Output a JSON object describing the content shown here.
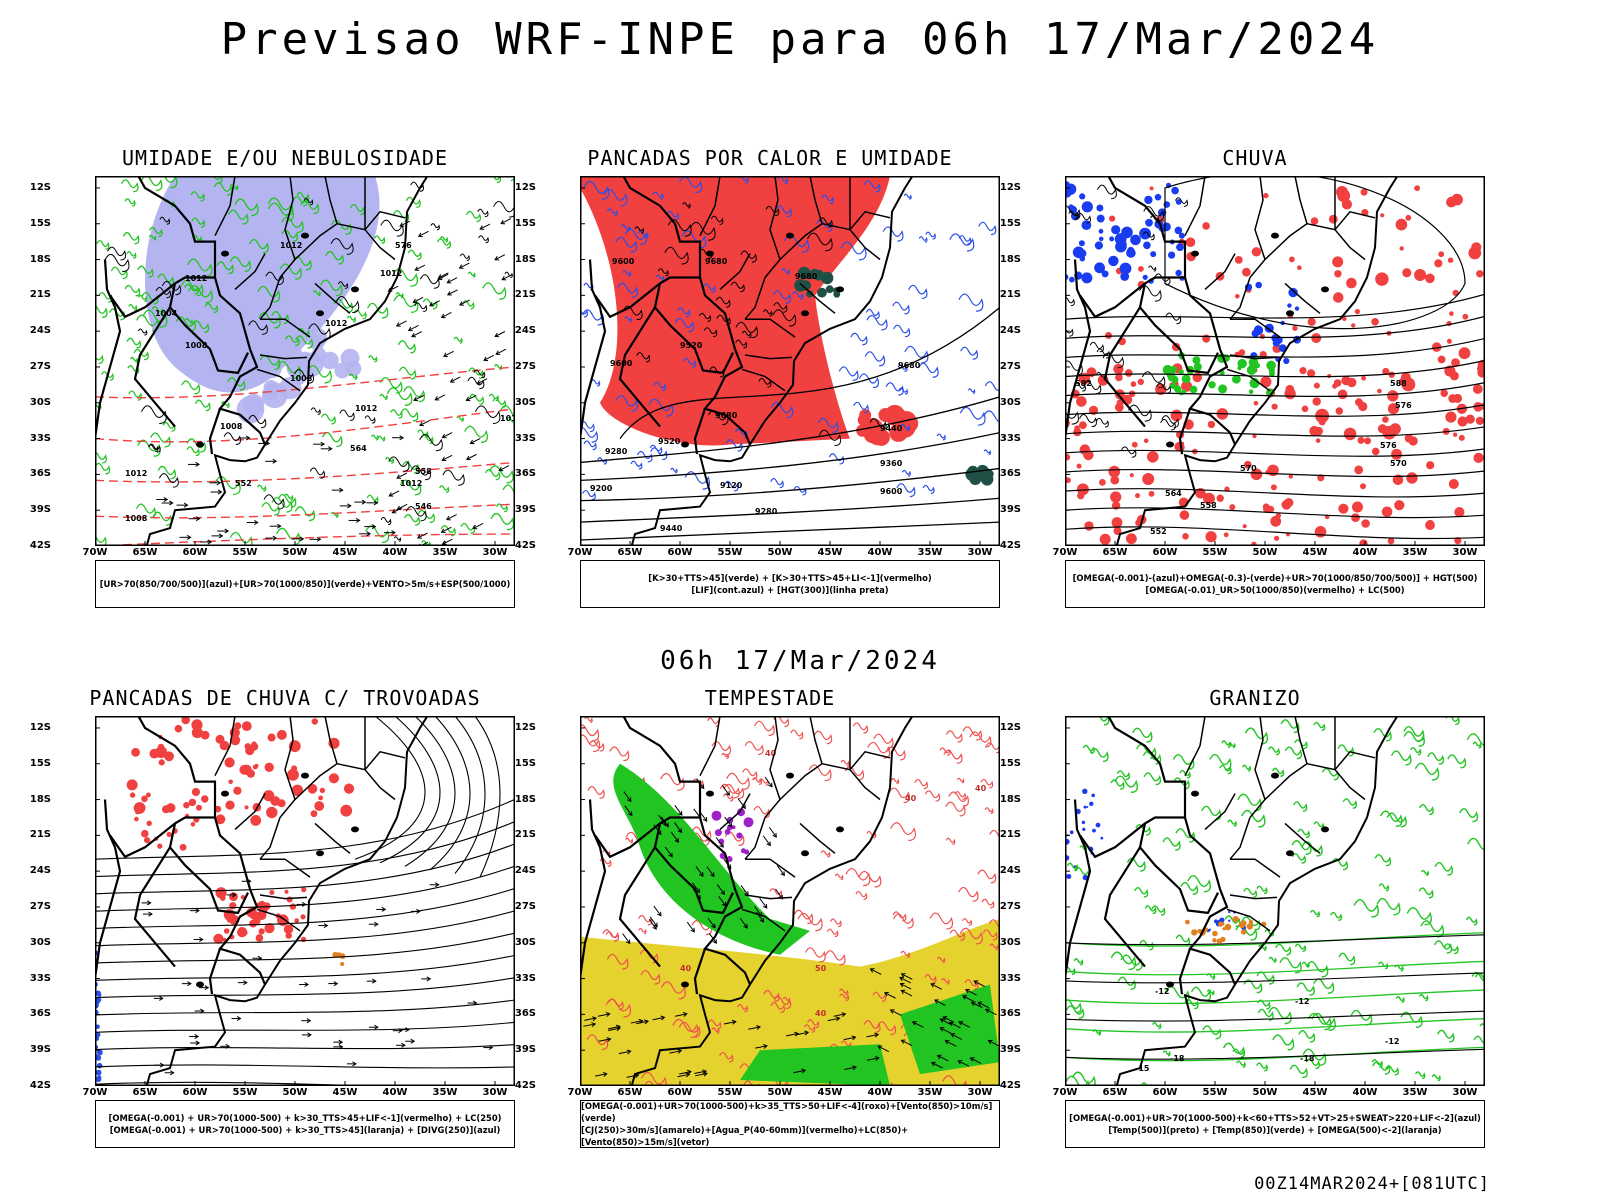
{
  "title": "Previsao WRF-INPE  para 06h 17/Mar/2024",
  "mid_time": "06h 17/Mar/2024",
  "footer": "00Z14MAR2024+[081UTC]",
  "axes": {
    "lat_labels": [
      "12S",
      "15S",
      "18S",
      "21S",
      "24S",
      "27S",
      "30S",
      "33S",
      "36S",
      "39S",
      "42S"
    ],
    "lon_labels": [
      "70W",
      "65W",
      "60W",
      "55W",
      "50W",
      "45W",
      "40W",
      "35W",
      "30W"
    ]
  },
  "panels": [
    {
      "id": "umidade",
      "title": "UMIDADE E/OU NEBULOSIDADE",
      "legend": [
        "[UR>70(850/700/500)](azul)+[UR>70(1000/850)](verde)+VENTO>5m/s+ESP(500/1000)"
      ],
      "contour_labels": [
        "1012",
        "1012",
        "1008",
        "1012",
        "1012",
        "1004",
        "1008",
        "1008",
        "1012",
        "1016",
        "1008",
        "1012",
        "1012",
        "1008",
        "576",
        "570",
        "564",
        "558",
        "552",
        "546"
      ]
    },
    {
      "id": "pancadas_calor",
      "title": "PANCADAS POR CALOR E UMIDADE",
      "legend": [
        "[K>30+TTS>45](verde) + [K>30+TTS>45+LI<-1](vermelho)",
        "[LIF](cont.azul) + [HGT(300)](linha preta)"
      ],
      "contour_labels": [
        "9680",
        "9600",
        "9680",
        "9680",
        "9680",
        "9520",
        "9600",
        "9440",
        "9520",
        "9280",
        "9360",
        "9200",
        "9120",
        "9280",
        "9440",
        "9600",
        "9680"
      ]
    },
    {
      "id": "chuva",
      "title": "CHUVA",
      "legend": [
        "[OMEGA(-0.001)-(azul)+OMEGA(-0.3)-(verde)+UR>70(1000/850/700/500)] + HGT(500)",
        "[OMEGA(-0.01)_UR>50(1000/850)(vermelho) + LC(500)"
      ],
      "contour_labels": [
        "588",
        "582",
        "576",
        "570",
        "564",
        "558",
        "552",
        "582",
        "576",
        "570"
      ]
    },
    {
      "id": "pancadas_trovoadas",
      "title": "PANCADAS DE CHUVA C/ TROVOADAS",
      "legend": [
        "[OMEGA(-0.001) + UR>70(1000-500) + k>30_TTS>45+LIF<-1](vermelho) + LC(250)",
        "[OMEGA(-0.001) + UR>70(1000-500) + k>30_TTS>45](laranja) + [DIVG(250)](azul)"
      ],
      "contour_labels": []
    },
    {
      "id": "tempestade",
      "title": "TEMPESTADE",
      "legend": [
        "[OMEGA(-0.001)+UR>70(1000-500)+k>35_TTS>50+LIF<-4](roxo)+[Vento(850)>10m/s](verde)",
        "[CJ(250)>30m/s](amarelo)+[Agua_P(40-60mm)](vermelho)+LC(850)+[Vento(850)>15m/s](vetor)"
      ],
      "contour_labels": [
        "40",
        "40",
        "40",
        "40",
        "50",
        "40"
      ]
    },
    {
      "id": "granizo",
      "title": "GRANIZO",
      "legend": [
        "[OMEGA(-0.001)+UR>70(1000-500)+k<60+TTS>52+VT>25+SWEAT>220+LIF<-2](azul)",
        "[Temp(500)](preto) + [Temp(850)](verde) + [OMEGA(500)<-2](laranja)"
      ],
      "contour_labels": [
        "-12",
        "-12",
        "-12",
        "-15",
        "-15",
        "-18",
        "-18"
      ]
    }
  ],
  "colors": {
    "blue_humidity": "#b4b4f0",
    "green": "#22c422",
    "red": "#f04040",
    "blue": "#1a3cf0",
    "yellow": "#e6d22e",
    "dark_green": "#1e5046",
    "purple": "#a020c8",
    "orange": "#e08020"
  }
}
